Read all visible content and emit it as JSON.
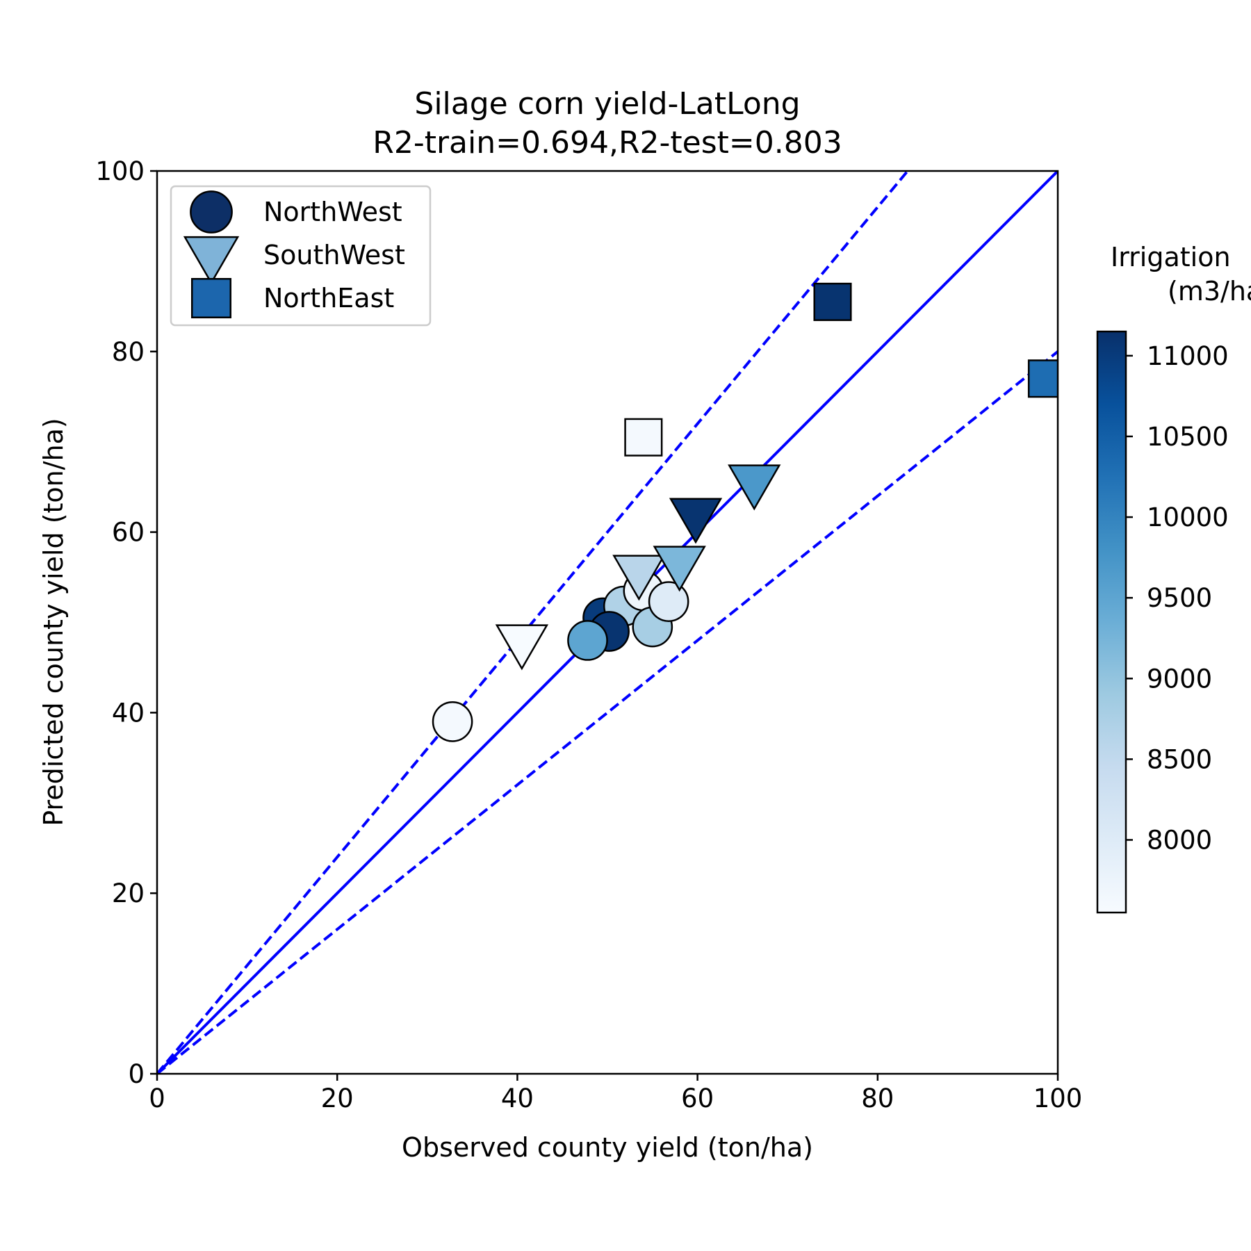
{
  "chart_data": {
    "type": "scatter",
    "title_line1": "Silage corn yield-LatLong",
    "title_line2": "R2-train=0.694,R2-test=0.803",
    "xlabel": "Observed county yield (ton/ha)",
    "ylabel": "Predicted county yield (ton/ha)",
    "xlim": [
      0,
      100
    ],
    "ylim": [
      0,
      100
    ],
    "xticks": [
      "0",
      "20",
      "40",
      "60",
      "80",
      "100"
    ],
    "yticks": [
      "0",
      "20",
      "40",
      "60",
      "80",
      "100"
    ],
    "grid": false,
    "legend_placement": "upper-left",
    "reference_lines": [
      {
        "style": "solid",
        "slope": 1.0,
        "color": "#0000ff"
      },
      {
        "style": "dashed",
        "slope": 1.2,
        "color": "#0000ff"
      },
      {
        "style": "dashed",
        "slope": 0.8,
        "color": "#0000ff"
      }
    ],
    "colorbar": {
      "title_line1": "Irrigation",
      "title_line2": "(m3/ha",
      "range": [
        7550,
        11150
      ],
      "ticks": [
        "8000",
        "8500",
        "9000",
        "9500",
        "10000",
        "10500",
        "11000"
      ],
      "colormap": "Blues"
    },
    "series": [
      {
        "name": "NorthWest",
        "marker": "circle",
        "legend_color": "#0d2f66",
        "points": [
          {
            "x": 32.8,
            "y": 39.0,
            "c": 7600
          },
          {
            "x": 49.5,
            "y": 50.5,
            "c": 11000
          },
          {
            "x": 51.8,
            "y": 51.8,
            "c": 8700
          },
          {
            "x": 54.0,
            "y": 53.5,
            "c": 7700
          },
          {
            "x": 50.2,
            "y": 49.0,
            "c": 11100
          },
          {
            "x": 55.0,
            "y": 49.5,
            "c": 8800
          },
          {
            "x": 56.8,
            "y": 52.3,
            "c": 8000
          },
          {
            "x": 47.8,
            "y": 48.0,
            "c": 9500
          }
        ]
      },
      {
        "name": "SouthWest",
        "marker": "triangle-down",
        "legend_color": "#7fb3d8",
        "points": [
          {
            "x": 40.5,
            "y": 47.8,
            "c": 7550
          },
          {
            "x": 53.5,
            "y": 55.5,
            "c": 8600
          },
          {
            "x": 58.0,
            "y": 56.5,
            "c": 9200
          },
          {
            "x": 59.8,
            "y": 61.8,
            "c": 11100
          },
          {
            "x": 66.3,
            "y": 65.5,
            "c": 9700
          }
        ]
      },
      {
        "name": "NorthEast",
        "marker": "square",
        "legend_color": "#1c66ad",
        "points": [
          {
            "x": 54.0,
            "y": 70.5,
            "c": 7600
          },
          {
            "x": 75.0,
            "y": 85.5,
            "c": 11100
          },
          {
            "x": 98.8,
            "y": 77.0,
            "c": 10300
          }
        ]
      }
    ]
  }
}
